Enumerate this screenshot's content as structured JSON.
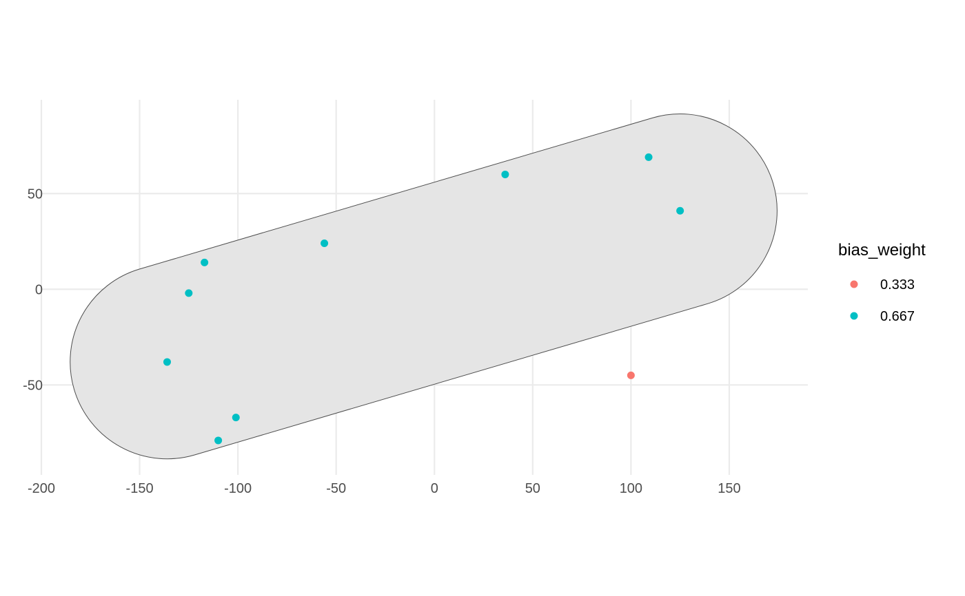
{
  "chart_data": {
    "type": "scatter",
    "title": "",
    "xlabel": "",
    "ylabel": "",
    "xlim": [
      -200,
      190
    ],
    "ylim": [
      -97,
      99
    ],
    "x_ticks": [
      -200,
      -150,
      -100,
      -50,
      0,
      50,
      100,
      150
    ],
    "y_ticks": [
      -50,
      0,
      50
    ],
    "grid": true,
    "legend": {
      "title": "bias_weight",
      "position": "right",
      "entries": [
        {
          "label": "0.333",
          "color": "#F8766D"
        },
        {
          "label": "0.667",
          "color": "#00BFC4"
        }
      ]
    },
    "hull": {
      "fill": "#E5E5E5",
      "stroke": "#4d4d4d",
      "centers": [
        [
          -136,
          -38
        ],
        [
          125,
          41
        ]
      ],
      "radius": 50
    },
    "points": [
      {
        "x": 109,
        "y": 69,
        "weight": "0.667"
      },
      {
        "x": 36,
        "y": 60,
        "weight": "0.667"
      },
      {
        "x": 125,
        "y": 41,
        "weight": "0.667"
      },
      {
        "x": -56,
        "y": 24,
        "weight": "0.667"
      },
      {
        "x": -117,
        "y": 14,
        "weight": "0.667"
      },
      {
        "x": -125,
        "y": -2,
        "weight": "0.667"
      },
      {
        "x": -136,
        "y": -38,
        "weight": "0.667"
      },
      {
        "x": 100,
        "y": -45,
        "weight": "0.333"
      },
      {
        "x": -101,
        "y": -67,
        "weight": "0.667"
      },
      {
        "x": -110,
        "y": -79,
        "weight": "0.667"
      }
    ]
  }
}
